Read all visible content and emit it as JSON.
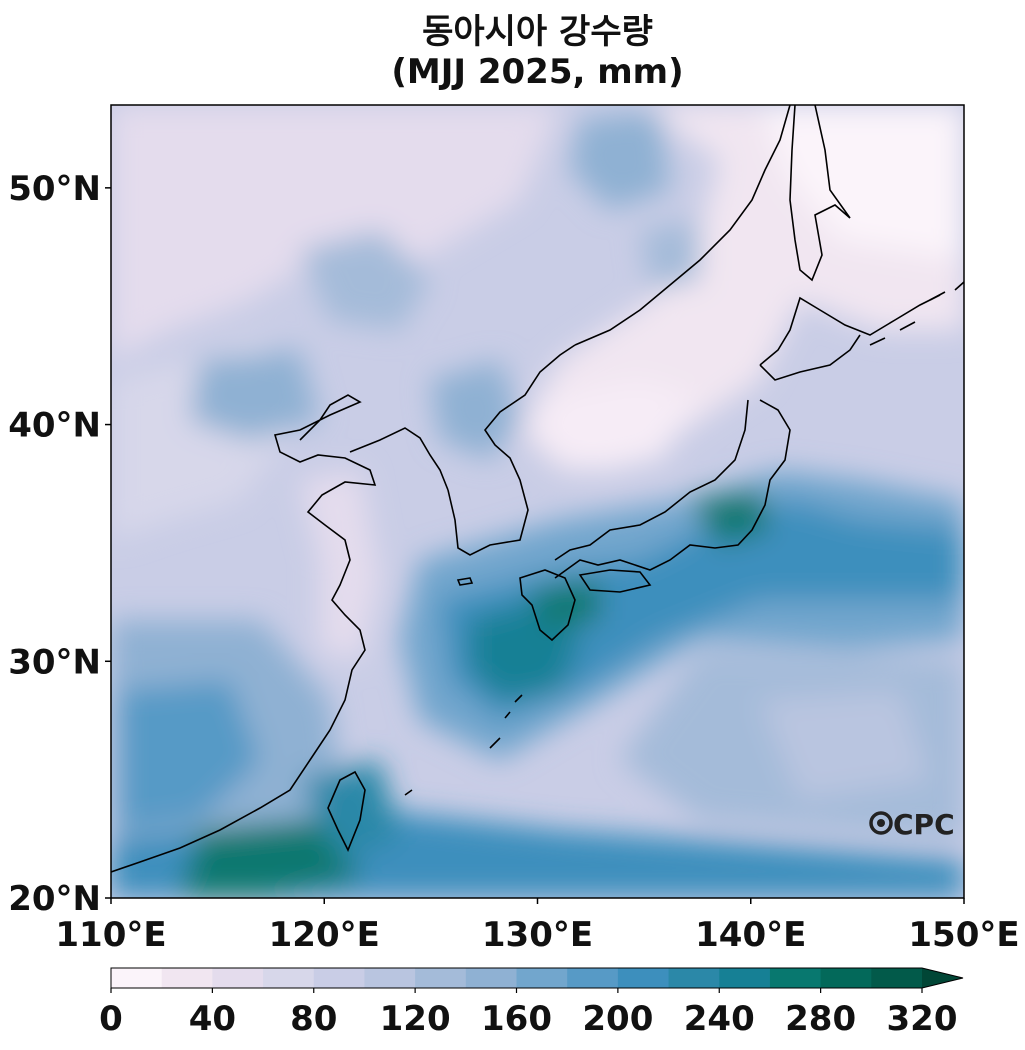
{
  "title": {
    "line1": "동아시아 강수량",
    "line2": "(MJJ 2025, mm)"
  },
  "map": {
    "lon_range": [
      110,
      150
    ],
    "lat_range": [
      20,
      53.5
    ],
    "lon_ticks": [
      110,
      120,
      130,
      140,
      150
    ],
    "lon_labels": [
      "110°E",
      "120°E",
      "130°E",
      "140°E",
      "150°E"
    ],
    "lat_ticks": [
      20,
      30,
      40,
      50
    ],
    "lat_labels": [
      "20°N",
      "30°N",
      "40°N",
      "50°N"
    ],
    "logo_text": "CPC"
  },
  "colorbar": {
    "levels": [
      0,
      20,
      40,
      60,
      80,
      100,
      120,
      140,
      160,
      180,
      200,
      220,
      240,
      260,
      280,
      300,
      320
    ],
    "tick_values": [
      0,
      40,
      80,
      120,
      160,
      200,
      240,
      280,
      320
    ],
    "tick_labels": [
      "0",
      "40",
      "80",
      "120",
      "160",
      "200",
      "240",
      "280",
      "320"
    ],
    "extend": "max",
    "colors": [
      "#fbf4fa",
      "#f1e6f1",
      "#e4dced",
      "#d7d7ea",
      "#c9cde6",
      "#b9c5e0",
      "#a4bbd9",
      "#8fb1d3",
      "#72a6cd",
      "#579ac6",
      "#3d8fbd",
      "#2b88a8",
      "#168095",
      "#08786f",
      "#03695a",
      "#025a4a",
      "#014636"
    ]
  }
}
